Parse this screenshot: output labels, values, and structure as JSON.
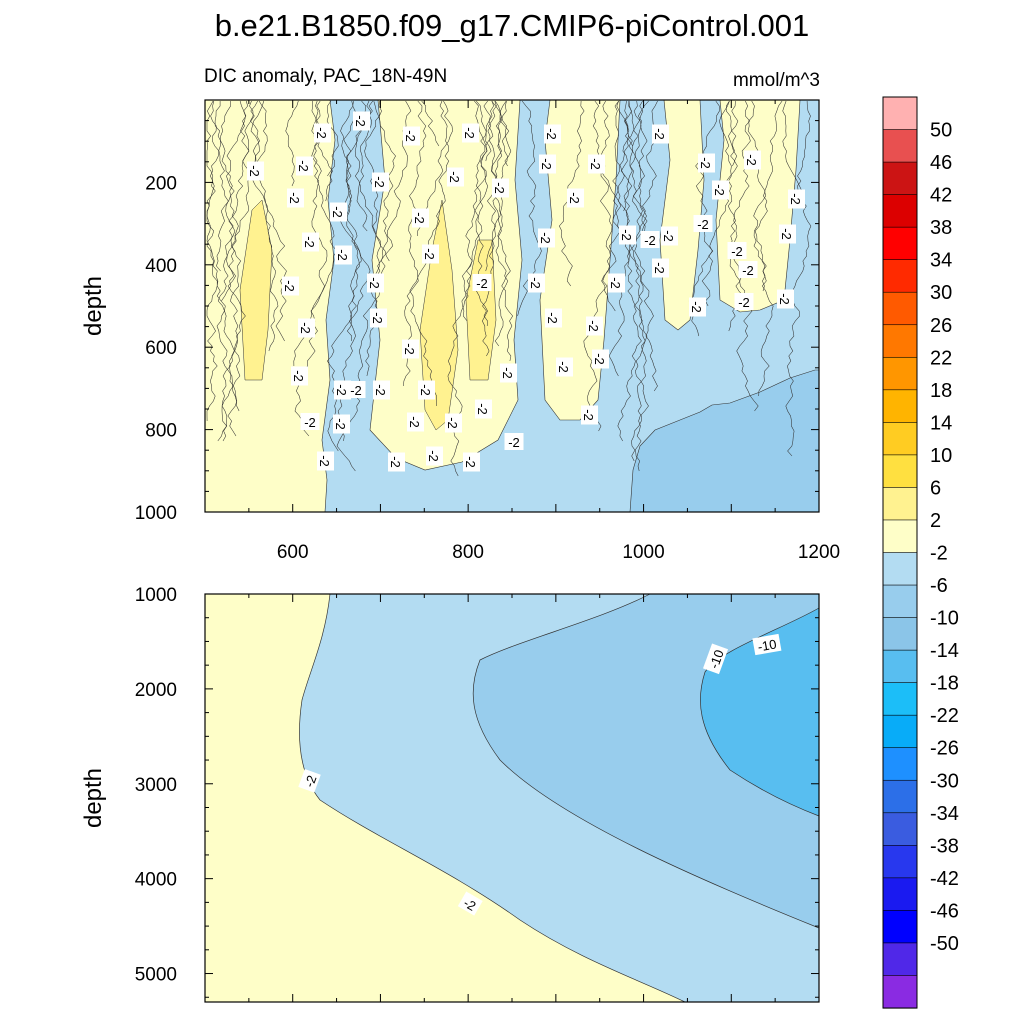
{
  "chart_data": {
    "type": "filled-contour",
    "title": "b.e21.B1850.f09_g17.CMIP6-piControl.001",
    "subtitle_left": "DIC anomaly, PAC_18N-49N",
    "units": "mmol/m^3",
    "panels": [
      {
        "name": "upper",
        "ylabel": "depth",
        "xlim": [
          500,
          1200
        ],
        "ylim": [
          1000,
          0
        ],
        "x_ticks": [
          600,
          800,
          1000,
          1200
        ],
        "y_ticks": [
          200,
          400,
          600,
          800,
          1000
        ],
        "contour_labels": [
          "-2",
          "-2",
          "-2",
          "-2",
          "-2",
          "-2",
          "-2",
          "-2",
          "-2",
          "-2",
          "-2",
          "-2",
          "-2",
          "-2",
          "-2",
          "-2",
          "-2",
          "-2",
          "-2",
          "-2",
          "-2",
          "-2",
          "-2",
          "-2",
          "-2",
          "-2",
          "-2",
          "-2",
          "-2",
          "-2",
          "-2",
          "-2",
          "-2",
          "-2",
          "-2",
          "-2",
          "-2",
          "-2",
          "-2",
          "-2",
          "-2",
          "-2",
          "-2",
          "-2",
          "-2",
          "-2",
          "-2",
          "-2",
          "-2",
          "-2",
          "-2",
          "-2",
          "-2",
          "-2",
          "-2",
          "-2",
          "-2",
          "-2",
          "-2",
          "-2",
          "-2",
          "-2",
          "-2",
          "-2",
          "-2"
        ]
      },
      {
        "name": "lower",
        "ylabel": "depth",
        "xlim": [
          500,
          1200
        ],
        "ylim": [
          5300,
          1000
        ],
        "y_ticks": [
          1000,
          2000,
          3000,
          4000,
          5000
        ],
        "contour_labels": [
          "-10",
          "-10",
          "-2",
          "-2"
        ]
      }
    ],
    "colorbar": {
      "levels": [
        "50",
        "46",
        "42",
        "38",
        "34",
        "30",
        "26",
        "22",
        "18",
        "14",
        "10",
        "6",
        "2",
        "-2",
        "-6",
        "-10",
        "-14",
        "-18",
        "-22",
        "-26",
        "-30",
        "-34",
        "-38",
        "-42",
        "-46",
        "-50"
      ],
      "colors": [
        "#ffb1b1",
        "#e85050",
        "#cc1414",
        "#dc0000",
        "#ff0000",
        "#ff2a00",
        "#ff5a00",
        "#ff7800",
        "#ff9600",
        "#ffb400",
        "#ffcc22",
        "#ffe040",
        "#fff290",
        "#fefec8",
        "#b3dcf2",
        "#98cded",
        "#8bc5e8",
        "#58bef0",
        "#1cbef8",
        "#08acf8",
        "#1e90ff",
        "#2c6fe8",
        "#3a5ce0",
        "#2838ee",
        "#1a1af0",
        "#0000ff",
        "#5028e8",
        "#8a2be2"
      ]
    }
  }
}
